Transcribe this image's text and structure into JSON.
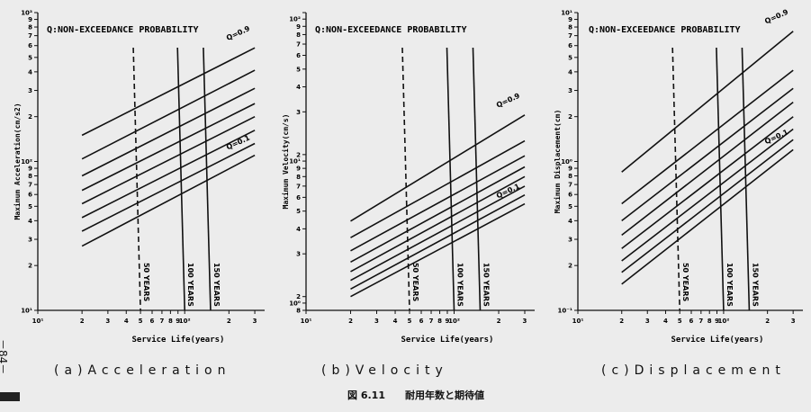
{
  "page_marker": "－84－",
  "figure_caption": "図 6.11　　耐用年数と期待値",
  "chart_data": [
    {
      "type": "line",
      "panel_label": "(a)Acceleration",
      "title": "Q:NON-EXCEEDANCE PROBABILITY",
      "xlabel": "Service Life(years)",
      "ylabel": "Maximum Acceleration(cm/s2)",
      "x_scale": "log",
      "y_scale": "log",
      "xlim": [
        10,
        350
      ],
      "ylim": [
        10,
        1000
      ],
      "x_ticks": [
        "10¹",
        "2",
        "3",
        "4",
        "5",
        "6",
        "7",
        "8",
        "9",
        "10²",
        "2",
        "3"
      ],
      "y_ticks": [
        "10¹",
        "2",
        "3",
        "4",
        "5",
        "6",
        "7",
        "8",
        "9",
        "10²",
        "2",
        "3",
        "4",
        "5",
        "6",
        "7",
        "8",
        "9",
        "10³"
      ],
      "series": [
        {
          "name": "Q=0.9",
          "x": [
            20,
            300
          ],
          "y": [
            150,
            580
          ]
        },
        {
          "name": "",
          "x": [
            20,
            300
          ],
          "y": [
            104,
            410
          ]
        },
        {
          "name": "",
          "x": [
            20,
            300
          ],
          "y": [
            80,
            310
          ]
        },
        {
          "name": "",
          "x": [
            20,
            300
          ],
          "y": [
            64,
            245
          ]
        },
        {
          "name": "",
          "x": [
            20,
            300
          ],
          "y": [
            52,
            200
          ]
        },
        {
          "name": "",
          "x": [
            20,
            300
          ],
          "y": [
            42,
            162
          ]
        },
        {
          "name": "",
          "x": [
            20,
            300
          ],
          "y": [
            34,
            132
          ]
        },
        {
          "name": "Q=0.1",
          "x": [
            20,
            300
          ],
          "y": [
            27,
            110
          ]
        }
      ],
      "reference_lines": [
        {
          "label": "50 YEARS",
          "x": 50,
          "style": "dashed"
        },
        {
          "label": "100 YEARS",
          "x": 100,
          "style": "solid"
        },
        {
          "label": "150 YEARS",
          "x": 150,
          "style": "solid"
        }
      ]
    },
    {
      "type": "line",
      "panel_label": "(b)Velocity",
      "title": "Q:NON-EXCEEDANCE PROBABILITY",
      "xlabel": "Service Life(years)",
      "ylabel": "Maximum Velocity(cm/s)",
      "x_scale": "log",
      "y_scale": "log",
      "xlim": [
        10,
        350
      ],
      "ylim": [
        0.8,
        100
      ],
      "x_ticks": [
        "10¹",
        "2",
        "3",
        "4",
        "5",
        "6",
        "7",
        "8",
        "9",
        "10²",
        "2",
        "3"
      ],
      "y_ticks": [
        "8",
        "10⁰",
        "2",
        "3",
        "4",
        "5",
        "6",
        "7",
        "8",
        "9",
        "10¹",
        "2",
        "3",
        "4",
        "5",
        "6",
        "7",
        "8",
        "9",
        "10²"
      ],
      "series": [
        {
          "name": "Q=0.9",
          "x": [
            20,
            300
          ],
          "y": [
            3.4,
            19
          ]
        },
        {
          "name": "",
          "x": [
            20,
            300
          ],
          "y": [
            2.6,
            12.5
          ]
        },
        {
          "name": "",
          "x": [
            20,
            300
          ],
          "y": [
            2.1,
            9.8
          ]
        },
        {
          "name": "",
          "x": [
            20,
            300
          ],
          "y": [
            1.75,
            8.2
          ]
        },
        {
          "name": "",
          "x": [
            20,
            300
          ],
          "y": [
            1.5,
            7.0
          ]
        },
        {
          "name": "",
          "x": [
            20,
            300
          ],
          "y": [
            1.3,
            6.0
          ]
        },
        {
          "name": "",
          "x": [
            20,
            300
          ],
          "y": [
            1.13,
            5.2
          ]
        },
        {
          "name": "Q=0.1",
          "x": [
            20,
            300
          ],
          "y": [
            1.0,
            4.5
          ]
        }
      ],
      "reference_lines": [
        {
          "label": "50 YEARS",
          "x": 50,
          "style": "dashed"
        },
        {
          "label": "100 YEARS",
          "x": 100,
          "style": "solid"
        },
        {
          "label": "150 YEARS",
          "x": 150,
          "style": "solid"
        }
      ]
    },
    {
      "type": "line",
      "panel_label": "(c)Displacement",
      "title": "Q:NON-EXCEEDANCE PROBABILITY",
      "xlabel": "Service Life(years)",
      "ylabel": "Maximum Displacement(cm)",
      "x_scale": "log",
      "y_scale": "log",
      "xlim": [
        10,
        350
      ],
      "ylim": [
        0.1,
        10
      ],
      "x_ticks": [
        "10¹",
        "2",
        "3",
        "4",
        "5",
        "6",
        "7",
        "8",
        "9",
        "10²",
        "2",
        "3"
      ],
      "y_ticks": [
        "10⁻¹",
        "2",
        "3",
        "4",
        "5",
        "6",
        "7",
        "8",
        "9",
        "10⁰",
        "2",
        "3",
        "4",
        "5",
        "6",
        "7",
        "8",
        "9",
        "10¹"
      ],
      "series": [
        {
          "name": "Q=0.9",
          "x": [
            20,
            300
          ],
          "y": [
            0.85,
            7.5
          ]
        },
        {
          "name": "",
          "x": [
            20,
            300
          ],
          "y": [
            0.52,
            4.1
          ]
        },
        {
          "name": "",
          "x": [
            20,
            300
          ],
          "y": [
            0.4,
            3.1
          ]
        },
        {
          "name": "",
          "x": [
            20,
            300
          ],
          "y": [
            0.32,
            2.5
          ]
        },
        {
          "name": "",
          "x": [
            20,
            300
          ],
          "y": [
            0.26,
            2.0
          ]
        },
        {
          "name": "",
          "x": [
            20,
            300
          ],
          "y": [
            0.215,
            1.65
          ]
        },
        {
          "name": "",
          "x": [
            20,
            300
          ],
          "y": [
            0.18,
            1.4
          ]
        },
        {
          "name": "Q=0.1",
          "x": [
            20,
            300
          ],
          "y": [
            0.15,
            1.2
          ]
        }
      ],
      "reference_lines": [
        {
          "label": "50 YEARS",
          "x": 50,
          "style": "dashed"
        },
        {
          "label": "100 YEARS",
          "x": 100,
          "style": "solid"
        },
        {
          "label": "150 YEARS",
          "x": 150,
          "style": "solid"
        }
      ]
    }
  ]
}
